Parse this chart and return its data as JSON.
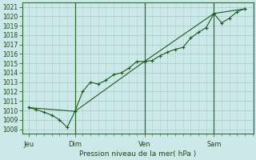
{
  "xlabel": "Pression niveau de la mer( hPa )",
  "bg_color": "#cce8e8",
  "grid_color": "#a8d0d0",
  "line_color": "#1a5c1a",
  "vline_color": "#2d6e2d",
  "ylim": [
    1007.5,
    1021.5
  ],
  "yticks": [
    1008,
    1009,
    1010,
    1011,
    1012,
    1013,
    1014,
    1015,
    1016,
    1017,
    1018,
    1019,
    1020,
    1021
  ],
  "day_labels": [
    "Jeu",
    "Dim",
    "Ven",
    "Sam"
  ],
  "day_positions": [
    0,
    36,
    90,
    144
  ],
  "xlim": [
    -5,
    175
  ],
  "series1_x": [
    0,
    6,
    12,
    18,
    24,
    30,
    36,
    42,
    48,
    54,
    60,
    66,
    72,
    78,
    84,
    90,
    96,
    102,
    108,
    114,
    120,
    126,
    132,
    138,
    144,
    150,
    156,
    162,
    168
  ],
  "series1_y": [
    1010.3,
    1010.1,
    1009.8,
    1009.5,
    1009.0,
    1008.2,
    1009.9,
    1012.0,
    1013.0,
    1012.8,
    1013.2,
    1013.8,
    1014.0,
    1014.5,
    1015.2,
    1015.2,
    1015.3,
    1015.8,
    1016.2,
    1016.5,
    1016.7,
    1017.7,
    1018.3,
    1018.8,
    1020.3,
    1019.3,
    1019.8,
    1020.5,
    1020.8
  ],
  "series2_x": [
    0,
    36,
    90,
    144,
    168
  ],
  "series2_y": [
    1010.3,
    1009.9,
    1015.2,
    1020.3,
    1020.8
  ],
  "vline_positions": [
    36,
    90,
    144
  ]
}
